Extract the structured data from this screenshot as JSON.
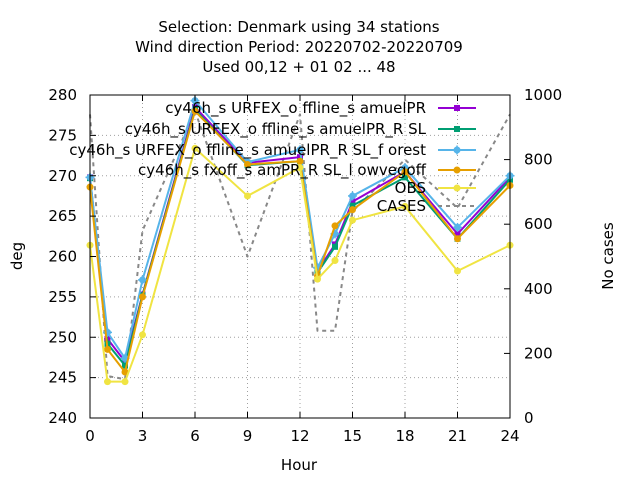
{
  "chart_data": {
    "type": "line",
    "title_lines": [
      "Selection: Denmark using    34 stations",
      "Wind direction   Period: 20220702-20220709",
      "Used  00,12  + 01 02 ... 48"
    ],
    "xlabel": "Hour",
    "ylabel": "deg",
    "y2label": "No cases",
    "xlim": [
      0,
      24
    ],
    "ylim": [
      240,
      280
    ],
    "y2lim": [
      0,
      1000
    ],
    "xticks": [
      0,
      3,
      6,
      9,
      12,
      15,
      18,
      21,
      24
    ],
    "yticks": [
      240,
      245,
      250,
      255,
      260,
      265,
      270,
      275,
      280
    ],
    "y2ticks": [
      0,
      200,
      400,
      600,
      800,
      1000
    ],
    "grid": true,
    "legend_position": "top-right",
    "series": [
      {
        "name": "cy46h_s URFEX_o ffline_s amuelPR",
        "color": "#9400d3",
        "marker": "square",
        "x": [
          0,
          1,
          2,
          3,
          6,
          9,
          12,
          13,
          14,
          15,
          18,
          21,
          24
        ],
        "y": [
          269.8,
          249.8,
          247.0,
          255.3,
          278.5,
          271.6,
          272.3,
          258.2,
          261.5,
          266.8,
          270.5,
          262.8,
          269.8
        ]
      },
      {
        "name": "cy46h_s URFEX_o ffline_s amuelPR_R SL",
        "color": "#009e73",
        "marker": "square",
        "x": [
          0,
          1,
          2,
          3,
          6,
          9,
          12,
          13,
          14,
          15,
          18,
          21,
          24
        ],
        "y": [
          269.7,
          249.2,
          246.5,
          255.2,
          278.2,
          271.3,
          271.8,
          258.0,
          261.2,
          266.3,
          269.8,
          262.2,
          269.5
        ]
      },
      {
        "name": "cy46h_s URFEX_o ffline_s amuelPR_R SL_f orest",
        "color": "#56b4e9",
        "marker": "star",
        "x": [
          0,
          1,
          2,
          3,
          6,
          9,
          12,
          13,
          14,
          15,
          18,
          21,
          24
        ],
        "y": [
          269.8,
          250.6,
          247.4,
          257.1,
          279.3,
          271.7,
          273.2,
          258.6,
          262.8,
          267.5,
          271.0,
          263.6,
          270.0
        ]
      },
      {
        "name": "cy46h_s fxoff_s amPR_R SL_l owvegoff",
        "color": "#e69f00",
        "marker": "circle",
        "x": [
          0,
          1,
          2,
          3,
          6,
          9,
          12,
          13,
          14,
          15,
          18,
          21,
          24
        ],
        "y": [
          268.6,
          248.5,
          245.7,
          255.0,
          278.0,
          271.4,
          271.8,
          257.6,
          263.8,
          265.8,
          270.5,
          262.2,
          268.8
        ]
      },
      {
        "name": "OBS",
        "color": "#f0e442",
        "marker": "circle",
        "x": [
          0,
          1,
          2,
          3,
          6,
          9,
          12,
          13,
          14,
          15,
          18,
          21,
          24
        ],
        "y": [
          261.4,
          244.5,
          244.5,
          250.3,
          273.4,
          267.5,
          271.0,
          257.2,
          259.5,
          264.5,
          266.2,
          258.2,
          261.4
        ]
      },
      {
        "name": "CASES",
        "color": "#888888",
        "axis": "y2",
        "dashed": true,
        "x": [
          0,
          1,
          2,
          3,
          6,
          9,
          12,
          13,
          14,
          15,
          18,
          21,
          24
        ],
        "y": [
          940,
          130,
          120,
          580,
          950,
          500,
          940,
          270,
          270,
          640,
          800,
          650,
          940
        ]
      }
    ]
  }
}
